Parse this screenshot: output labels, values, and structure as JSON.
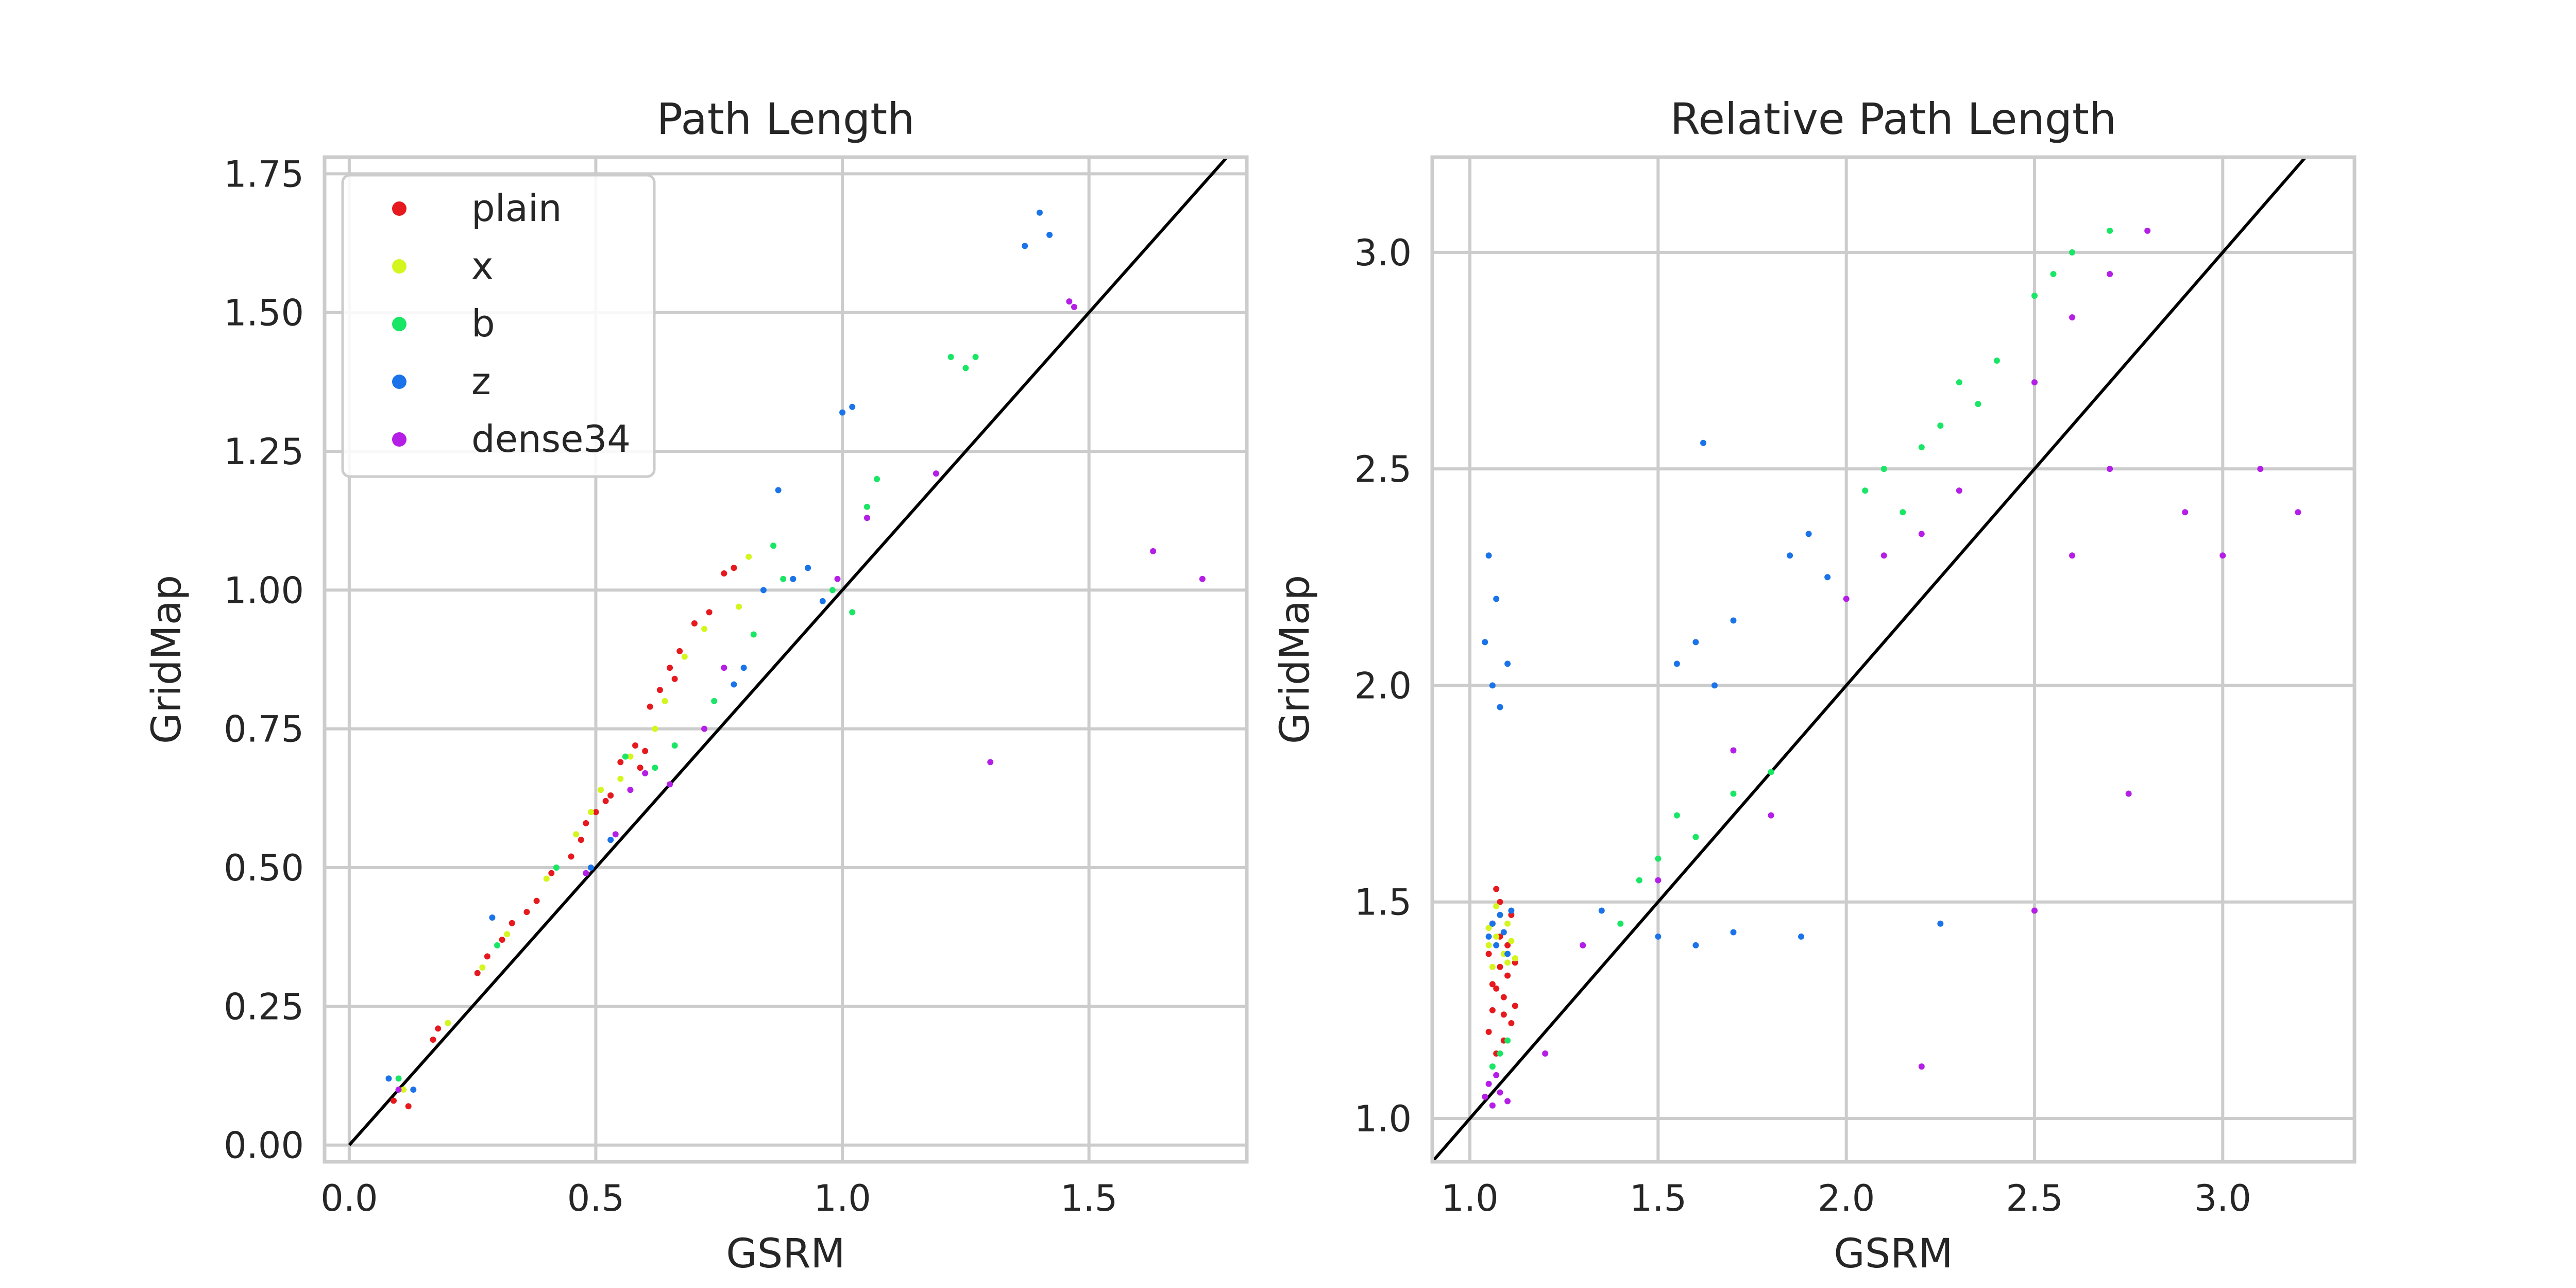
{
  "chart_data": [
    {
      "type": "scatter",
      "title": "Path Length",
      "xlabel": "GSRM",
      "ylabel": "GridMap",
      "xlim": [
        -0.05,
        1.82
      ],
      "ylim": [
        -0.03,
        1.78
      ],
      "xticks": [
        0.0,
        0.5,
        1.0,
        1.5
      ],
      "xtick_labels": [
        "0.0",
        "0.5",
        "1.0",
        "1.5"
      ],
      "yticks": [
        0.0,
        0.25,
        0.5,
        0.75,
        1.0,
        1.25,
        1.5,
        1.75
      ],
      "ytick_labels": [
        "0.00",
        "0.25",
        "0.50",
        "0.75",
        "1.00",
        "1.25",
        "1.50",
        "1.75"
      ],
      "grid": true,
      "reference_line": "y = x",
      "legend_position": "upper-left",
      "series": [
        {
          "name": "plain",
          "color": "#e6191e",
          "points": [
            [
              0.09,
              0.08
            ],
            [
              0.12,
              0.07
            ],
            [
              0.17,
              0.19
            ],
            [
              0.18,
              0.21
            ],
            [
              0.26,
              0.31
            ],
            [
              0.28,
              0.34
            ],
            [
              0.31,
              0.37
            ],
            [
              0.33,
              0.4
            ],
            [
              0.38,
              0.44
            ],
            [
              0.41,
              0.49
            ],
            [
              0.45,
              0.52
            ],
            [
              0.48,
              0.58
            ],
            [
              0.5,
              0.6
            ],
            [
              0.53,
              0.63
            ],
            [
              0.55,
              0.69
            ],
            [
              0.58,
              0.72
            ],
            [
              0.6,
              0.71
            ],
            [
              0.63,
              0.82
            ],
            [
              0.65,
              0.86
            ],
            [
              0.67,
              0.89
            ],
            [
              0.7,
              0.94
            ],
            [
              0.73,
              0.96
            ],
            [
              0.76,
              1.03
            ],
            [
              0.78,
              1.04
            ],
            [
              0.52,
              0.62
            ],
            [
              0.61,
              0.79
            ],
            [
              0.66,
              0.84
            ],
            [
              0.59,
              0.68
            ],
            [
              0.36,
              0.42
            ],
            [
              0.47,
              0.55
            ]
          ]
        },
        {
          "name": "x",
          "color": "#d4f51e",
          "points": [
            [
              0.11,
              0.1
            ],
            [
              0.2,
              0.22
            ],
            [
              0.27,
              0.32
            ],
            [
              0.32,
              0.38
            ],
            [
              0.4,
              0.48
            ],
            [
              0.46,
              0.56
            ],
            [
              0.51,
              0.64
            ],
            [
              0.57,
              0.7
            ],
            [
              0.62,
              0.75
            ],
            [
              0.68,
              0.88
            ],
            [
              0.72,
              0.93
            ],
            [
              0.79,
              0.97
            ],
            [
              0.81,
              1.06
            ],
            [
              0.64,
              0.8
            ],
            [
              0.55,
              0.66
            ],
            [
              0.49,
              0.6
            ]
          ]
        },
        {
          "name": "b",
          "color": "#19e664",
          "points": [
            [
              0.1,
              0.12
            ],
            [
              0.3,
              0.36
            ],
            [
              0.42,
              0.5
            ],
            [
              0.56,
              0.7
            ],
            [
              0.66,
              0.72
            ],
            [
              0.74,
              0.8
            ],
            [
              0.82,
              0.92
            ],
            [
              0.88,
              1.02
            ],
            [
              0.93,
              1.04
            ],
            [
              0.98,
              1.0
            ],
            [
              1.02,
              0.96
            ],
            [
              1.05,
              1.15
            ],
            [
              1.07,
              1.2
            ],
            [
              1.22,
              1.42
            ],
            [
              1.25,
              1.4
            ],
            [
              1.27,
              1.42
            ],
            [
              0.86,
              1.08
            ],
            [
              0.62,
              0.68
            ]
          ]
        },
        {
          "name": "z",
          "color": "#1a73e8",
          "points": [
            [
              0.08,
              0.12
            ],
            [
              0.13,
              0.1
            ],
            [
              0.29,
              0.41
            ],
            [
              0.49,
              0.5
            ],
            [
              0.53,
              0.55
            ],
            [
              0.8,
              0.86
            ],
            [
              0.84,
              1.0
            ],
            [
              0.87,
              1.18
            ],
            [
              0.9,
              1.02
            ],
            [
              0.96,
              0.98
            ],
            [
              1.0,
              1.32
            ],
            [
              1.02,
              1.33
            ],
            [
              1.37,
              1.62
            ],
            [
              1.4,
              1.68
            ],
            [
              1.42,
              1.64
            ],
            [
              0.93,
              1.04
            ],
            [
              0.78,
              0.83
            ]
          ]
        },
        {
          "name": "dense34",
          "color": "#b41ee6",
          "points": [
            [
              0.1,
              0.1
            ],
            [
              0.48,
              0.49
            ],
            [
              0.54,
              0.56
            ],
            [
              0.57,
              0.64
            ],
            [
              0.6,
              0.67
            ],
            [
              0.65,
              0.65
            ],
            [
              0.72,
              0.75
            ],
            [
              0.76,
              0.86
            ],
            [
              0.99,
              1.02
            ],
            [
              1.05,
              1.13
            ],
            [
              1.19,
              1.21
            ],
            [
              1.3,
              0.69
            ],
            [
              1.46,
              1.52
            ],
            [
              1.47,
              1.51
            ],
            [
              1.63,
              1.07
            ],
            [
              1.73,
              1.02
            ]
          ]
        }
      ]
    },
    {
      "type": "scatter",
      "title": "Relative Path Length",
      "xlabel": "GSRM",
      "ylabel": "GridMap",
      "xlim": [
        0.9,
        3.35
      ],
      "ylim": [
        0.9,
        3.22
      ],
      "xticks": [
        1.0,
        1.5,
        2.0,
        2.5,
        3.0
      ],
      "xtick_labels": [
        "1.0",
        "1.5",
        "2.0",
        "2.5",
        "3.0"
      ],
      "yticks": [
        1.0,
        1.5,
        2.0,
        2.5,
        3.0
      ],
      "ytick_labels": [
        "1.0",
        "1.5",
        "2.0",
        "2.5",
        "3.0"
      ],
      "grid": true,
      "reference_line": "y = x",
      "series": [
        {
          "name": "plain",
          "color": "#e6191e",
          "points": [
            [
              1.05,
              1.2
            ],
            [
              1.06,
              1.25
            ],
            [
              1.07,
              1.3
            ],
            [
              1.08,
              1.35
            ],
            [
              1.09,
              1.28
            ],
            [
              1.1,
              1.4
            ],
            [
              1.11,
              1.22
            ],
            [
              1.06,
              1.45
            ],
            [
              1.08,
              1.5
            ],
            [
              1.09,
              1.18
            ],
            [
              1.07,
              1.15
            ],
            [
              1.1,
              1.33
            ],
            [
              1.12,
              1.26
            ],
            [
              1.05,
              1.38
            ],
            [
              1.11,
              1.47
            ],
            [
              1.08,
              1.42
            ],
            [
              1.06,
              1.31
            ],
            [
              1.09,
              1.24
            ],
            [
              1.12,
              1.36
            ],
            [
              1.07,
              1.53
            ]
          ]
        },
        {
          "name": "x",
          "color": "#d4f51e",
          "points": [
            [
              1.05,
              1.4
            ],
            [
              1.07,
              1.42
            ],
            [
              1.09,
              1.38
            ],
            [
              1.1,
              1.45
            ],
            [
              1.06,
              1.35
            ],
            [
              1.08,
              1.47
            ],
            [
              1.11,
              1.41
            ],
            [
              1.12,
              1.37
            ],
            [
              1.07,
              1.49
            ],
            [
              1.09,
              1.43
            ],
            [
              1.05,
              1.44
            ],
            [
              1.1,
              1.36
            ]
          ]
        },
        {
          "name": "b",
          "color": "#19e664",
          "points": [
            [
              1.06,
              1.12
            ],
            [
              1.08,
              1.15
            ],
            [
              1.1,
              1.18
            ],
            [
              1.3,
              1.4
            ],
            [
              1.4,
              1.45
            ],
            [
              1.5,
              1.6
            ],
            [
              1.55,
              1.7
            ],
            [
              1.6,
              1.65
            ],
            [
              1.7,
              1.75
            ],
            [
              1.8,
              1.8
            ],
            [
              2.05,
              2.45
            ],
            [
              2.1,
              2.5
            ],
            [
              2.15,
              2.4
            ],
            [
              2.2,
              2.55
            ],
            [
              2.25,
              2.6
            ],
            [
              2.3,
              2.7
            ],
            [
              2.4,
              2.75
            ],
            [
              2.5,
              2.9
            ],
            [
              2.6,
              3.0
            ],
            [
              2.7,
              3.05
            ],
            [
              1.45,
              1.55
            ],
            [
              2.35,
              2.65
            ],
            [
              2.55,
              2.95
            ]
          ]
        },
        {
          "name": "z",
          "color": "#1a73e8",
          "points": [
            [
              1.05,
              1.42
            ],
            [
              1.06,
              1.45
            ],
            [
              1.07,
              1.4
            ],
            [
              1.08,
              1.47
            ],
            [
              1.09,
              1.43
            ],
            [
              1.1,
              1.38
            ],
            [
              1.11,
              1.48
            ],
            [
              1.04,
              2.1
            ],
            [
              1.05,
              2.3
            ],
            [
              1.06,
              2.0
            ],
            [
              1.07,
              2.2
            ],
            [
              1.08,
              1.95
            ],
            [
              1.1,
              2.05
            ],
            [
              1.55,
              2.05
            ],
            [
              1.6,
              2.1
            ],
            [
              1.65,
              2.0
            ],
            [
              1.7,
              2.15
            ],
            [
              1.85,
              2.3
            ],
            [
              1.9,
              2.35
            ],
            [
              1.95,
              2.25
            ],
            [
              1.5,
              1.42
            ],
            [
              1.6,
              1.4
            ],
            [
              1.7,
              1.43
            ],
            [
              1.88,
              1.42
            ],
            [
              2.25,
              1.45
            ],
            [
              1.35,
              1.48
            ],
            [
              1.62,
              2.56
            ]
          ]
        },
        {
          "name": "dense34",
          "color": "#b41ee6",
          "points": [
            [
              1.04,
              1.05
            ],
            [
              1.05,
              1.08
            ],
            [
              1.06,
              1.03
            ],
            [
              1.07,
              1.1
            ],
            [
              1.08,
              1.06
            ],
            [
              1.1,
              1.04
            ],
            [
              1.2,
              1.15
            ],
            [
              1.3,
              1.4
            ],
            [
              1.5,
              1.55
            ],
            [
              1.7,
              1.85
            ],
            [
              2.0,
              2.2
            ],
            [
              2.1,
              2.3
            ],
            [
              2.2,
              2.35
            ],
            [
              2.3,
              2.45
            ],
            [
              2.5,
              2.7
            ],
            [
              2.6,
              2.85
            ],
            [
              2.7,
              2.95
            ],
            [
              2.8,
              3.05
            ],
            [
              2.6,
              2.3
            ],
            [
              2.7,
              2.5
            ],
            [
              2.9,
              2.4
            ],
            [
              3.0,
              2.3
            ],
            [
              3.1,
              2.5
            ],
            [
              3.2,
              2.4
            ],
            [
              2.75,
              1.75
            ],
            [
              2.2,
              1.12
            ],
            [
              2.5,
              1.48
            ],
            [
              1.8,
              1.7
            ]
          ]
        }
      ]
    }
  ]
}
